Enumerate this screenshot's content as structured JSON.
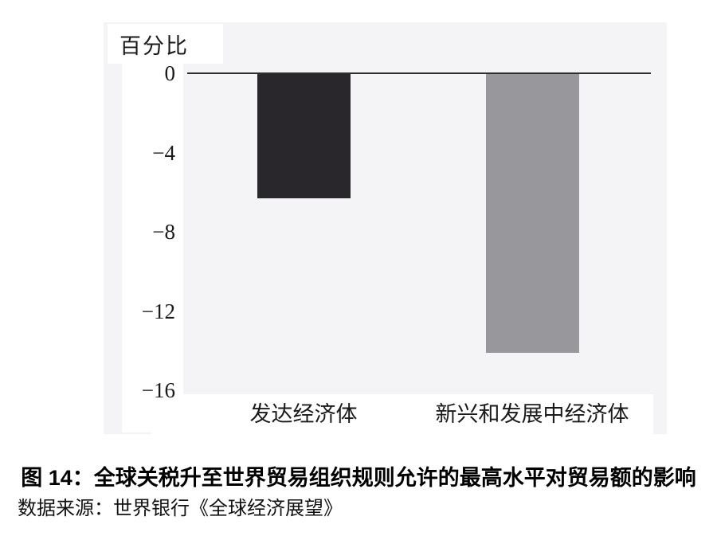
{
  "figure": {
    "caption": "图 14：全球关税升至世界贸易组织规则允许的最高水平对贸易额的影响",
    "source": "数据来源：世界银行《全球经济展望》"
  },
  "chart_data": {
    "type": "bar",
    "title": "图 14：全球关税升至世界贸易组织规则允许的最高水平对贸易额的影响",
    "ylabel": "百分比",
    "categories": [
      "发达经济体",
      "新兴和发展中经济体"
    ],
    "values": [
      -6.3,
      -14.1
    ],
    "bar_colors": [
      "#29272b",
      "#98979b"
    ],
    "ytick_labels": [
      "0",
      "−4",
      "−8",
      "−12",
      "−16"
    ],
    "yticks": [
      0,
      -4,
      -8,
      -12,
      -16
    ],
    "ylim": [
      -16.5,
      0
    ],
    "grid": false,
    "legend": null,
    "axis_color": "#2e2e30",
    "plot_background": "#f4f4f6",
    "source": "数据来源：世界银行《全球经济展望》"
  }
}
